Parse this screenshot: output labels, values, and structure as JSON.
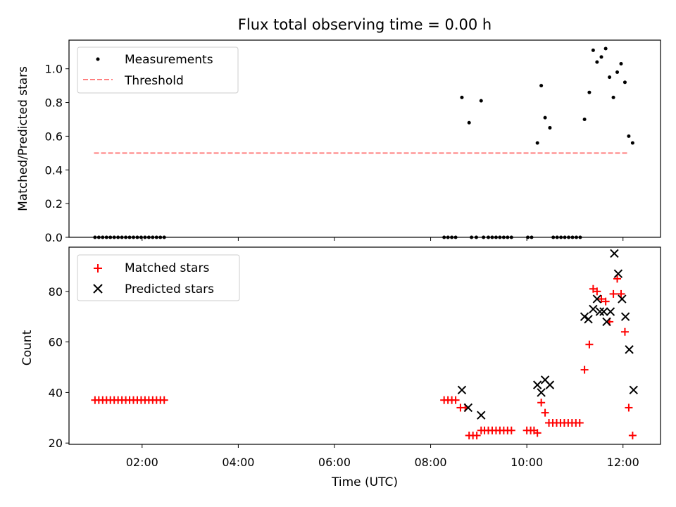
{
  "chart_data": [
    {
      "type": "scatter",
      "title": "Flux total observing time = 0.00 h",
      "ylabel": "Matched/Predicted stars",
      "xlabel": "",
      "xlim": [
        0.48,
        12.78
      ],
      "ylim": [
        0.0,
        1.17
      ],
      "yticks": [
        0.0,
        0.2,
        0.4,
        0.6,
        0.8,
        1.0
      ],
      "ytick_labels": [
        "0.0",
        "0.2",
        "0.4",
        "0.6",
        "0.8",
        "1.0"
      ],
      "legend_position": "top-left",
      "legend": [
        "Measurements",
        "Threshold"
      ],
      "threshold": {
        "name": "Threshold",
        "y": 0.5,
        "x": [
          1.0,
          12.1
        ],
        "color": "#ff7f7f",
        "style": "dashed"
      },
      "series": [
        {
          "name": "Measurements",
          "color": "#000000",
          "points": [
            [
              1.02,
              0
            ],
            [
              1.1,
              0
            ],
            [
              1.18,
              0
            ],
            [
              1.26,
              0
            ],
            [
              1.34,
              0
            ],
            [
              1.42,
              0
            ],
            [
              1.5,
              0
            ],
            [
              1.58,
              0
            ],
            [
              1.66,
              0
            ],
            [
              1.74,
              0
            ],
            [
              1.82,
              0
            ],
            [
              1.9,
              0
            ],
            [
              1.98,
              0
            ],
            [
              2.06,
              0
            ],
            [
              2.14,
              0
            ],
            [
              2.22,
              0
            ],
            [
              2.3,
              0
            ],
            [
              2.38,
              0
            ],
            [
              2.46,
              0
            ],
            [
              8.28,
              0
            ],
            [
              8.36,
              0
            ],
            [
              8.44,
              0
            ],
            [
              8.52,
              0
            ],
            [
              8.65,
              0.83
            ],
            [
              8.8,
              0.68
            ],
            [
              8.85,
              0
            ],
            [
              8.95,
              0
            ],
            [
              9.05,
              0.81
            ],
            [
              9.1,
              0
            ],
            [
              9.2,
              0
            ],
            [
              9.28,
              0
            ],
            [
              9.36,
              0
            ],
            [
              9.44,
              0
            ],
            [
              9.52,
              0
            ],
            [
              9.6,
              0
            ],
            [
              9.68,
              0
            ],
            [
              10.02,
              0
            ],
            [
              10.1,
              0
            ],
            [
              10.22,
              0.56
            ],
            [
              10.3,
              0.9
            ],
            [
              10.38,
              0.71
            ],
            [
              10.48,
              0.65
            ],
            [
              10.55,
              0
            ],
            [
              10.63,
              0
            ],
            [
              10.71,
              0
            ],
            [
              10.79,
              0
            ],
            [
              10.87,
              0
            ],
            [
              10.95,
              0
            ],
            [
              11.03,
              0
            ],
            [
              11.11,
              0
            ],
            [
              11.2,
              0.7
            ],
            [
              11.3,
              0.86
            ],
            [
              11.38,
              1.11
            ],
            [
              11.46,
              1.04
            ],
            [
              11.55,
              1.07
            ],
            [
              11.64,
              1.12
            ],
            [
              11.72,
              0.95
            ],
            [
              11.8,
              0.83
            ],
            [
              11.88,
              0.98
            ],
            [
              11.96,
              1.03
            ],
            [
              12.04,
              0.92
            ],
            [
              12.12,
              0.6
            ],
            [
              12.2,
              0.56
            ]
          ]
        }
      ]
    },
    {
      "type": "scatter",
      "title": "",
      "xlabel": "Time (UTC)",
      "ylabel": "Count",
      "xlim": [
        0.48,
        12.78
      ],
      "ylim": [
        19.5,
        97.5
      ],
      "xticks": [
        2,
        4,
        6,
        8,
        10,
        12
      ],
      "xtick_labels": [
        "02:00",
        "04:00",
        "06:00",
        "08:00",
        "10:00",
        "12:00"
      ],
      "yticks": [
        20,
        40,
        60,
        80
      ],
      "ytick_labels": [
        "20",
        "40",
        "60",
        "80"
      ],
      "legend_position": "top-left",
      "legend": [
        "Matched stars",
        "Predicted stars"
      ],
      "series": [
        {
          "name": "Matched stars",
          "marker": "plus",
          "color": "#ff0000",
          "points": [
            [
              1.02,
              37
            ],
            [
              1.1,
              37
            ],
            [
              1.18,
              37
            ],
            [
              1.26,
              37
            ],
            [
              1.34,
              37
            ],
            [
              1.42,
              37
            ],
            [
              1.5,
              37
            ],
            [
              1.58,
              37
            ],
            [
              1.66,
              37
            ],
            [
              1.74,
              37
            ],
            [
              1.82,
              37
            ],
            [
              1.9,
              37
            ],
            [
              1.98,
              37
            ],
            [
              2.06,
              37
            ],
            [
              2.14,
              37
            ],
            [
              2.22,
              37
            ],
            [
              2.3,
              37
            ],
            [
              2.38,
              37
            ],
            [
              2.46,
              37
            ],
            [
              8.28,
              37
            ],
            [
              8.36,
              37
            ],
            [
              8.44,
              37
            ],
            [
              8.52,
              37
            ],
            [
              8.62,
              34
            ],
            [
              8.72,
              34
            ],
            [
              8.8,
              23
            ],
            [
              8.88,
              23
            ],
            [
              8.96,
              23
            ],
            [
              9.05,
              25
            ],
            [
              9.12,
              25
            ],
            [
              9.2,
              25
            ],
            [
              9.28,
              25
            ],
            [
              9.36,
              25
            ],
            [
              9.44,
              25
            ],
            [
              9.52,
              25
            ],
            [
              9.6,
              25
            ],
            [
              9.68,
              25
            ],
            [
              10.0,
              25
            ],
            [
              10.08,
              25
            ],
            [
              10.15,
              25
            ],
            [
              10.22,
              24
            ],
            [
              10.3,
              36
            ],
            [
              10.38,
              32
            ],
            [
              10.46,
              28
            ],
            [
              10.54,
              28
            ],
            [
              10.62,
              28
            ],
            [
              10.7,
              28
            ],
            [
              10.78,
              28
            ],
            [
              10.86,
              28
            ],
            [
              10.94,
              28
            ],
            [
              11.02,
              28
            ],
            [
              11.1,
              28
            ],
            [
              11.2,
              49
            ],
            [
              11.3,
              59
            ],
            [
              11.38,
              81
            ],
            [
              11.46,
              80
            ],
            [
              11.55,
              77
            ],
            [
              11.64,
              76
            ],
            [
              11.72,
              68
            ],
            [
              11.8,
              79
            ],
            [
              11.88,
              85
            ],
            [
              11.96,
              79
            ],
            [
              12.04,
              64
            ],
            [
              12.12,
              34
            ],
            [
              12.2,
              23
            ]
          ]
        },
        {
          "name": "Predicted stars",
          "marker": "x",
          "color": "#000000",
          "points": [
            [
              8.65,
              41
            ],
            [
              8.78,
              34
            ],
            [
              9.05,
              31
            ],
            [
              10.22,
              43
            ],
            [
              10.3,
              40
            ],
            [
              10.38,
              45
            ],
            [
              10.48,
              43
            ],
            [
              11.2,
              70
            ],
            [
              11.28,
              69
            ],
            [
              11.38,
              73
            ],
            [
              11.46,
              77
            ],
            [
              11.52,
              72
            ],
            [
              11.6,
              72
            ],
            [
              11.66,
              68
            ],
            [
              11.74,
              72
            ],
            [
              11.82,
              95
            ],
            [
              11.9,
              87
            ],
            [
              11.98,
              77
            ],
            [
              12.05,
              70
            ],
            [
              12.13,
              57
            ],
            [
              12.22,
              41
            ]
          ]
        }
      ]
    }
  ]
}
